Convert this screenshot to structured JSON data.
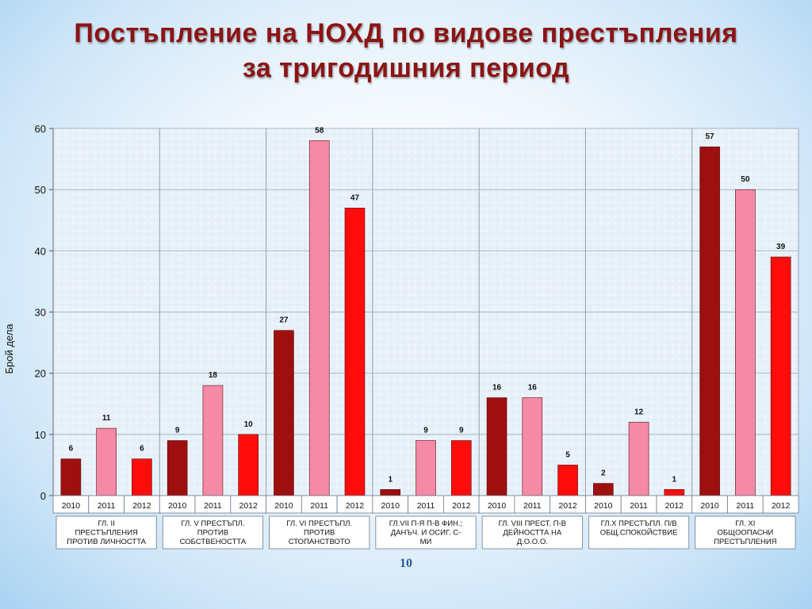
{
  "slide": {
    "title_line1": "Постъпление на НОХД по видове престъпления",
    "title_line2": "за тригодишния период",
    "page_number": "10"
  },
  "colors": {
    "year_2010": "#9e0f0f",
    "year_2011": "#f58aa6",
    "year_2012": "#ff0d0d",
    "title": "#8b1414"
  },
  "chart_data": {
    "type": "bar",
    "ylabel": "Брой дела",
    "ylim": [
      0,
      60
    ],
    "yticks": [
      0,
      10,
      20,
      30,
      40,
      50,
      60
    ],
    "years": [
      "2010",
      "2011",
      "2012"
    ],
    "groups": [
      {
        "label_lines": [
          "ГЛ. II",
          "ПРЕСТЪПЛЕНИЯ",
          "ПРОТИВ ЛИЧНОСТТА"
        ],
        "values": [
          6,
          11,
          6
        ]
      },
      {
        "label_lines": [
          "ГЛ. V ПРЕСТЪПЛ.",
          "ПРОТИВ",
          "СОБСТВЕНОСТТА"
        ],
        "values": [
          9,
          18,
          10
        ]
      },
      {
        "label_lines": [
          "ГЛ. VI ПРЕСТЪПЛ.",
          "ПРОТИВ",
          "СТОПАНСТВОТО"
        ],
        "values": [
          27,
          58,
          47
        ]
      },
      {
        "label_lines": [
          "ГЛ.VII П-Я П-В ФИН.;",
          "ДАНЪЧ. И ОСИГ. С-",
          "МИ"
        ],
        "values": [
          1,
          9,
          9
        ]
      },
      {
        "label_lines": [
          "ГЛ. VIII ПРЕСТ. П-В",
          "ДЕЙНОСТТА НА",
          "Д.О.О.О."
        ],
        "values": [
          16,
          16,
          5
        ]
      },
      {
        "label_lines": [
          "ГЛ.Х ПРЕСТЪПЛ. П/В",
          "ОБЩ.СПОКОЙСТВИЕ"
        ],
        "values": [
          2,
          12,
          1
        ]
      },
      {
        "label_lines": [
          "ГЛ. XI",
          "ОБЩООПАСНИ",
          "ПРЕСТЪПЛЕНИЯ"
        ],
        "values": [
          57,
          50,
          39
        ]
      }
    ],
    "grid": true,
    "legend": "none"
  }
}
